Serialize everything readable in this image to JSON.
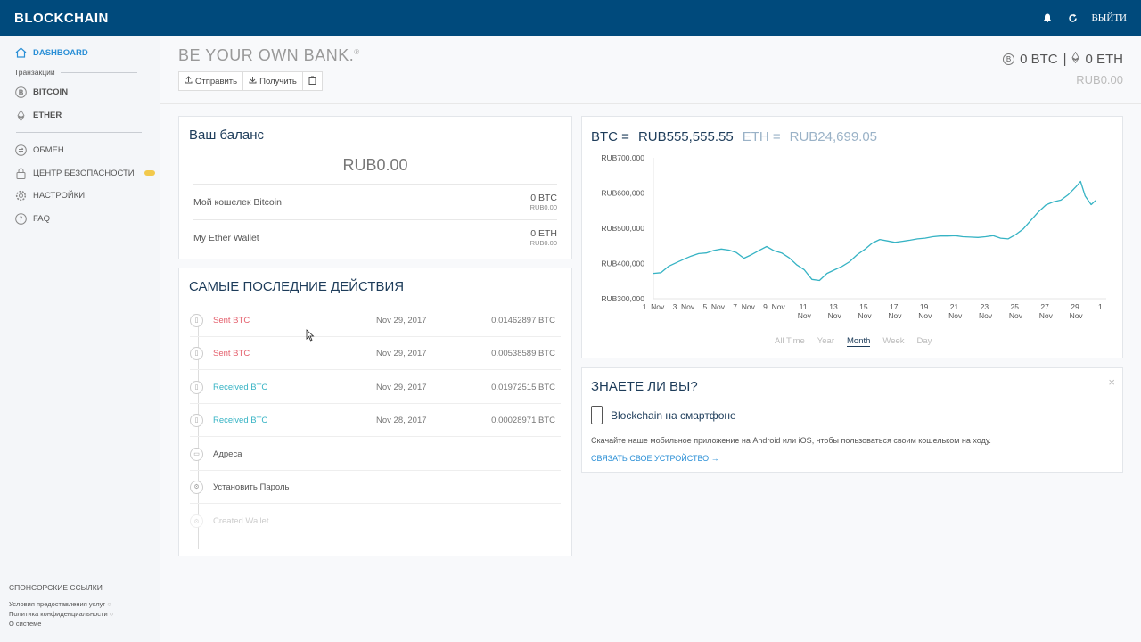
{
  "topbar": {
    "logo": "BLOCKCHAIN",
    "logout_label": "ВЫЙТИ",
    "icons": [
      "bell-icon",
      "refresh-icon"
    ]
  },
  "sidebar": {
    "dashboard": "DASHBOARD",
    "transactions_label": "Транзакции",
    "bitcoin": "BITCOIN",
    "ether": "ETHER",
    "exchange": "ОБМЕН",
    "security": "ЦЕНТР БЕЗОПАСНОСТИ",
    "settings": "НАСТРОЙКИ",
    "faq": "FAQ",
    "sponsored": "СПОНСОРСКИЕ ССЫЛКИ",
    "footer": [
      "Условия предоставления услуг",
      "Политика конфиденциальности",
      "О системе"
    ]
  },
  "header": {
    "title": "BE YOUR OWN BANK.",
    "title_mark": "®",
    "send": "Отправить",
    "receive": "Получить",
    "btc_total": "0 BTC",
    "eth_total": "0 ETH",
    "rub_total": "RUB0.00"
  },
  "balance": {
    "title": "Ваш баланс",
    "total": "RUB0.00",
    "wallets": [
      {
        "name": "Мой кошелек Bitcoin",
        "amount": "0 BTC",
        "rub": "RUB0.00"
      },
      {
        "name": "My Ether Wallet",
        "amount": "0 ETH",
        "rub": "RUB0.00"
      }
    ]
  },
  "activity": {
    "title": "САМЫЕ ПОСЛЕДНИЕ ДЕЙСТВИЯ",
    "items": [
      {
        "label": "Sent BTC",
        "date": "Nov 29, 2017",
        "amount": "0.01462897 BTC"
      },
      {
        "label": "Sent BTC",
        "date": "Nov 29, 2017",
        "amount": "0.00538589 BTC"
      },
      {
        "label": "Received BTC",
        "date": "Nov 29, 2017",
        "amount": "0.01972515 BTC"
      },
      {
        "label": "Received BTC",
        "date": "Nov 28, 2017",
        "amount": "0.00028971 BTC"
      },
      {
        "label": "Адреса",
        "date": "",
        "amount": ""
      },
      {
        "label": "Установить Пароль",
        "date": "",
        "amount": ""
      },
      {
        "label": "Created Wallet",
        "date": "",
        "amount": ""
      }
    ]
  },
  "price": {
    "btc_label": "BTC =",
    "btc_value": "RUB555,555.55",
    "eth_label": "ETH =",
    "eth_value": "RUB24,699.05",
    "ranges": [
      "All Time",
      "Year",
      "Month",
      "Week",
      "Day"
    ],
    "selected_range": "Month"
  },
  "chart_data": {
    "type": "line",
    "title": "",
    "xlabel": "",
    "ylabel": "",
    "ylim": [
      300000,
      700000
    ],
    "y_ticks": [
      "RUB700,000",
      "RUB600,000",
      "RUB500,000",
      "RUB400,000",
      "RUB300,000"
    ],
    "x_ticks": [
      "1. Nov",
      "3. Nov",
      "5. Nov",
      "7. Nov",
      "9. Nov",
      "11. Nov",
      "13. Nov",
      "15. Nov",
      "17. Nov",
      "19. Nov",
      "21. Nov",
      "23. Nov",
      "25. Nov",
      "27. Nov",
      "29. Nov",
      "1. …"
    ],
    "x": [
      1,
      1.5,
      2,
      2.5,
      3,
      3.5,
      4,
      4.5,
      5,
      5.5,
      6,
      6.5,
      7,
      7.5,
      8,
      8.5,
      9,
      9.5,
      10,
      10.5,
      11,
      11.5,
      12,
      12.5,
      13,
      13.5,
      14,
      14.5,
      15,
      15.5,
      16,
      16.5,
      17,
      17.5,
      18,
      18.5,
      19,
      19.5,
      20,
      20.5,
      21,
      21.5,
      22,
      22.5,
      23,
      23.5,
      24,
      24.5,
      25,
      25.5,
      26,
      26.5,
      27,
      27.5,
      28,
      28.5,
      29,
      29.3,
      29.6,
      30,
      30.3
    ],
    "values": [
      372000,
      374000,
      392000,
      402000,
      412000,
      421000,
      428000,
      430000,
      437000,
      441000,
      438000,
      431000,
      415000,
      425000,
      437000,
      448000,
      436000,
      430000,
      416000,
      396000,
      382000,
      355000,
      352000,
      372000,
      382000,
      392000,
      405000,
      425000,
      440000,
      458000,
      468000,
      464000,
      460000,
      463000,
      466000,
      470000,
      472000,
      476000,
      478000,
      478000,
      479000,
      476000,
      475000,
      474000,
      476000,
      479000,
      472000,
      470000,
      482000,
      498000,
      522000,
      546000,
      566000,
      575000,
      580000,
      596000,
      618000,
      633000,
      592000,
      567000,
      579000
    ],
    "series": [
      {
        "name": "",
        "color": "#36b3c4"
      }
    ]
  },
  "know": {
    "title": "ЗНАЕТЕ ЛИ ВЫ?",
    "app_name": "Blockchain",
    "app_suffix": "на смартфоне",
    "desc": "Скачайте наше мобильное приложение на Android или iOS, чтобы пользоваться своим кошельком на ходу.",
    "link": "СВЯЗАТЬ СВОЕ УСТРОЙСТВО →"
  }
}
